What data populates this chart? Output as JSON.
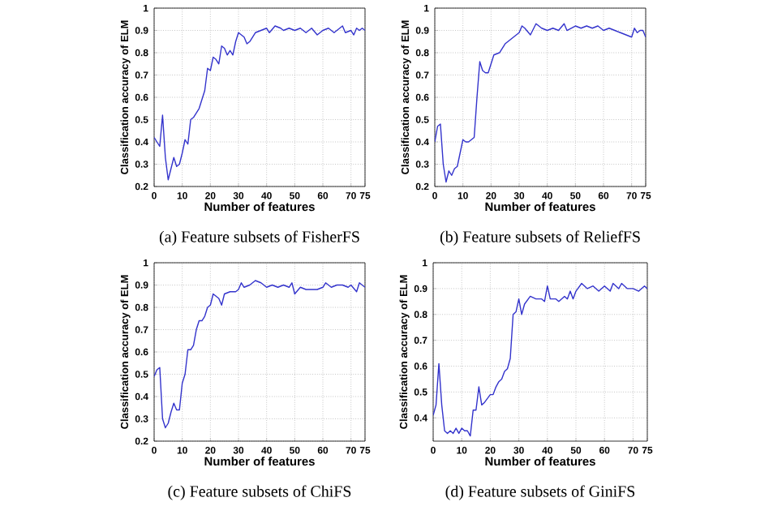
{
  "chart_data": [
    {
      "type": "line",
      "title": "(a) Feature subsets of FisherFS",
      "xlabel": "Number of features",
      "ylabel": "Classification accuracy of ELM",
      "xlim": [
        0,
        75
      ],
      "xticks": [
        0,
        10,
        20,
        30,
        40,
        50,
        60,
        70,
        75
      ],
      "ylim": [
        0.2,
        1
      ],
      "yticks": [
        0.2,
        0.3,
        0.4,
        0.5,
        0.6,
        0.7,
        0.8,
        0.9,
        1
      ],
      "grid": true,
      "marker": "none",
      "line_style": "solid",
      "series": [
        {
          "color": "#3333cc",
          "x": [
            0,
            1,
            2,
            3,
            4,
            5,
            6,
            7,
            8,
            9,
            10,
            11,
            12,
            13,
            14,
            16,
            18,
            19,
            20,
            21,
            22,
            23,
            24,
            25,
            26,
            27,
            28,
            29,
            30,
            32,
            33,
            34,
            36,
            38,
            40,
            41,
            43,
            45,
            46,
            48,
            50,
            52,
            54,
            56,
            58,
            60,
            62,
            64,
            66,
            67,
            68,
            70,
            71,
            72,
            73,
            74,
            75
          ],
          "values": [
            0.42,
            0.4,
            0.38,
            0.52,
            0.33,
            0.23,
            0.28,
            0.33,
            0.29,
            0.3,
            0.35,
            0.41,
            0.39,
            0.5,
            0.51,
            0.55,
            0.63,
            0.73,
            0.72,
            0.78,
            0.77,
            0.75,
            0.83,
            0.82,
            0.79,
            0.81,
            0.79,
            0.85,
            0.89,
            0.87,
            0.84,
            0.85,
            0.89,
            0.9,
            0.91,
            0.89,
            0.92,
            0.91,
            0.9,
            0.91,
            0.9,
            0.91,
            0.89,
            0.91,
            0.88,
            0.9,
            0.91,
            0.89,
            0.91,
            0.92,
            0.89,
            0.9,
            0.88,
            0.91,
            0.9,
            0.91,
            0.9
          ]
        }
      ]
    },
    {
      "type": "line",
      "title": "(b) Feature subsets of ReliefFS",
      "xlabel": "Number of features",
      "ylabel": "Classification accuracy of ELM",
      "xlim": [
        0,
        75
      ],
      "xticks": [
        0,
        10,
        20,
        30,
        40,
        50,
        60,
        70,
        75
      ],
      "ylim": [
        0.2,
        1
      ],
      "yticks": [
        0.2,
        0.3,
        0.4,
        0.5,
        0.6,
        0.7,
        0.8,
        0.9,
        1
      ],
      "grid": true,
      "marker": "none",
      "line_style": "solid",
      "series": [
        {
          "color": "#3333cc",
          "x": [
            0,
            1,
            2,
            3,
            4,
            5,
            6,
            7,
            8,
            9,
            10,
            11,
            12,
            13,
            14,
            15,
            16,
            17,
            18,
            19,
            20,
            21,
            23,
            25,
            27,
            29,
            30,
            31,
            32,
            34,
            36,
            38,
            40,
            42,
            44,
            46,
            47,
            50,
            52,
            54,
            56,
            58,
            60,
            62,
            64,
            66,
            68,
            70,
            71,
            72,
            73,
            74,
            75
          ],
          "values": [
            0.4,
            0.47,
            0.48,
            0.3,
            0.22,
            0.27,
            0.25,
            0.28,
            0.29,
            0.35,
            0.41,
            0.4,
            0.4,
            0.41,
            0.42,
            0.6,
            0.76,
            0.72,
            0.71,
            0.71,
            0.75,
            0.79,
            0.8,
            0.84,
            0.86,
            0.88,
            0.89,
            0.92,
            0.91,
            0.88,
            0.93,
            0.91,
            0.9,
            0.91,
            0.9,
            0.93,
            0.9,
            0.92,
            0.91,
            0.92,
            0.91,
            0.92,
            0.9,
            0.91,
            0.9,
            0.89,
            0.88,
            0.87,
            0.91,
            0.89,
            0.9,
            0.9,
            0.87
          ]
        }
      ]
    },
    {
      "type": "line",
      "title": "(c) Feature subsets of ChiFS",
      "xlabel": "Number of features",
      "ylabel": "Classification accuracy of ELM",
      "xlim": [
        0,
        75
      ],
      "xticks": [
        0,
        10,
        20,
        30,
        40,
        50,
        60,
        70,
        75
      ],
      "ylim": [
        0.2,
        1
      ],
      "yticks": [
        0.2,
        0.3,
        0.4,
        0.5,
        0.6,
        0.7,
        0.8,
        0.9,
        1
      ],
      "grid": true,
      "marker": "none",
      "line_style": "solid",
      "series": [
        {
          "color": "#3333cc",
          "x": [
            0,
            1,
            2,
            3,
            4,
            5,
            6,
            7,
            8,
            9,
            10,
            11,
            12,
            13,
            14,
            15,
            16,
            17,
            18,
            19,
            20,
            21,
            22,
            23,
            24,
            25,
            27,
            29,
            30,
            31,
            32,
            34,
            36,
            38,
            40,
            42,
            44,
            46,
            48,
            49,
            50,
            52,
            54,
            56,
            58,
            60,
            61,
            63,
            65,
            67,
            69,
            70,
            72,
            73,
            75
          ],
          "values": [
            0.49,
            0.52,
            0.53,
            0.3,
            0.26,
            0.28,
            0.33,
            0.37,
            0.34,
            0.34,
            0.46,
            0.5,
            0.61,
            0.61,
            0.63,
            0.7,
            0.74,
            0.74,
            0.76,
            0.8,
            0.81,
            0.86,
            0.85,
            0.84,
            0.81,
            0.86,
            0.87,
            0.87,
            0.88,
            0.91,
            0.89,
            0.9,
            0.92,
            0.91,
            0.89,
            0.9,
            0.89,
            0.9,
            0.89,
            0.91,
            0.86,
            0.89,
            0.88,
            0.88,
            0.88,
            0.89,
            0.91,
            0.89,
            0.9,
            0.9,
            0.89,
            0.9,
            0.87,
            0.91,
            0.89
          ]
        }
      ]
    },
    {
      "type": "line",
      "title": "(d) Feature subsets of GiniFS",
      "xlabel": "Number of features",
      "ylabel": "Classification accuracy of ELM",
      "xlim": [
        0,
        75
      ],
      "xticks": [
        0,
        10,
        20,
        30,
        40,
        50,
        60,
        70,
        75
      ],
      "ylim": [
        0.31,
        1
      ],
      "yticks": [
        0.4,
        0.5,
        0.6,
        0.7,
        0.8,
        0.9,
        1
      ],
      "grid": true,
      "marker": "none",
      "line_style": "solid",
      "series": [
        {
          "color": "#3333cc",
          "x": [
            0,
            1,
            2,
            3,
            4,
            5,
            6,
            7,
            8,
            9,
            10,
            11,
            12,
            13,
            14,
            15,
            16,
            17,
            18,
            20,
            21,
            22,
            23,
            24,
            25,
            26,
            27,
            28,
            29,
            30,
            31,
            32,
            34,
            36,
            38,
            39,
            40,
            41,
            43,
            44,
            46,
            47,
            48,
            49,
            50,
            52,
            54,
            56,
            58,
            60,
            62,
            63,
            65,
            66,
            68,
            70,
            72,
            74,
            75
          ],
          "values": [
            0.41,
            0.45,
            0.61,
            0.45,
            0.35,
            0.34,
            0.35,
            0.34,
            0.36,
            0.34,
            0.36,
            0.35,
            0.35,
            0.33,
            0.43,
            0.43,
            0.52,
            0.45,
            0.46,
            0.49,
            0.49,
            0.52,
            0.54,
            0.55,
            0.58,
            0.59,
            0.63,
            0.8,
            0.81,
            0.86,
            0.8,
            0.84,
            0.87,
            0.86,
            0.86,
            0.85,
            0.91,
            0.86,
            0.86,
            0.85,
            0.87,
            0.86,
            0.89,
            0.86,
            0.89,
            0.92,
            0.9,
            0.91,
            0.89,
            0.91,
            0.89,
            0.92,
            0.9,
            0.92,
            0.9,
            0.9,
            0.89,
            0.91,
            0.9
          ]
        }
      ]
    }
  ]
}
